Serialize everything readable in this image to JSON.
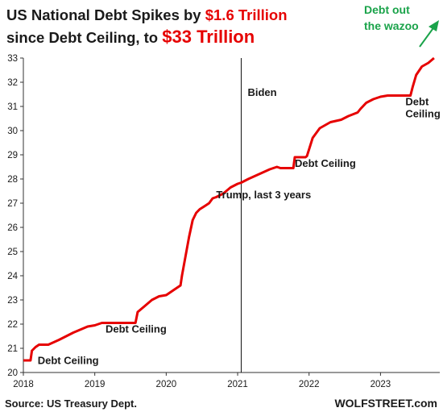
{
  "title": {
    "line1_a": "US National Debt Spikes by ",
    "line1_b": "$1.6 Trillion",
    "line2_a": "since Debt Ceiling, to ",
    "line2_b": "$33 Trillion"
  },
  "callout": {
    "line1": "Debt out",
    "line2": "the wazoo"
  },
  "source": "Source: US Treasury Dept.",
  "brand": "WOLFSTREET.com",
  "colors": {
    "series": "#e60000",
    "title_accent": "#e60000",
    "callout": "#1aa34a",
    "axis": "#333333"
  },
  "chart_data": {
    "type": "line",
    "title": "US National Debt Spikes by $1.6 Trillion since Debt Ceiling, to $33 Trillion",
    "xlabel": "",
    "ylabel": "",
    "xlim": [
      2018,
      2023.83
    ],
    "ylim": [
      20,
      33
    ],
    "grid": false,
    "legend": "none",
    "x_ticks": [
      "2018",
      "2019",
      "2020",
      "2021",
      "2022",
      "2023"
    ],
    "y_ticks": [
      "20",
      "21",
      "22",
      "23",
      "24",
      "25",
      "26",
      "27",
      "28",
      "29",
      "30",
      "31",
      "32",
      "33"
    ],
    "vertical_line": {
      "x": 2021.05,
      "label": "Biden"
    },
    "annotations": [
      {
        "text": "Debt Ceiling",
        "x": 2018.2,
        "y": 20.35
      },
      {
        "text": "Debt Ceiling",
        "x": 2019.15,
        "y": 21.65
      },
      {
        "text": "Trump, last 3 years",
        "x": 2020.7,
        "y": 27.2
      },
      {
        "text": "Debt Ceiling",
        "x": 2021.8,
        "y": 28.5
      },
      {
        "text": "Debt",
        "x": 2023.35,
        "y": 31.05
      },
      {
        "text": "Ceiling",
        "x": 2023.35,
        "y": 30.55
      }
    ],
    "series": [
      {
        "name": "US National Debt ($ trillion)",
        "x": [
          2018.0,
          2018.1,
          2018.12,
          2018.17,
          2018.22,
          2018.35,
          2018.5,
          2018.7,
          2018.9,
          2019.0,
          2019.1,
          2019.15,
          2019.4,
          2019.57,
          2019.6,
          2019.7,
          2019.8,
          2019.9,
          2020.0,
          2020.1,
          2020.2,
          2020.22,
          2020.27,
          2020.32,
          2020.37,
          2020.42,
          2020.47,
          2020.55,
          2020.6,
          2020.65,
          2020.7,
          2020.8,
          2020.9,
          2021.0,
          2021.05,
          2021.15,
          2021.3,
          2021.45,
          2021.55,
          2021.6,
          2021.75,
          2021.78,
          2021.8,
          2021.95,
          2021.97,
          2022.05,
          2022.15,
          2022.3,
          2022.45,
          2022.55,
          2022.68,
          2022.72,
          2022.8,
          2022.9,
          2023.0,
          2023.1,
          2023.2,
          2023.35,
          2023.42,
          2023.45,
          2023.5,
          2023.58,
          2023.67,
          2023.75
        ],
        "y": [
          20.5,
          20.5,
          20.9,
          21.05,
          21.15,
          21.15,
          21.35,
          21.65,
          21.9,
          21.95,
          22.05,
          22.05,
          22.05,
          22.05,
          22.5,
          22.75,
          23.0,
          23.15,
          23.2,
          23.4,
          23.6,
          24.0,
          24.8,
          25.6,
          26.3,
          26.6,
          26.75,
          26.9,
          27.0,
          27.2,
          27.25,
          27.4,
          27.65,
          27.8,
          27.85,
          28.0,
          28.2,
          28.4,
          28.5,
          28.45,
          28.45,
          28.45,
          28.9,
          28.9,
          28.95,
          29.7,
          30.1,
          30.35,
          30.45,
          30.6,
          30.75,
          30.9,
          31.15,
          31.3,
          31.4,
          31.45,
          31.45,
          31.45,
          31.45,
          31.8,
          32.3,
          32.65,
          32.8,
          33.0
        ]
      }
    ]
  }
}
